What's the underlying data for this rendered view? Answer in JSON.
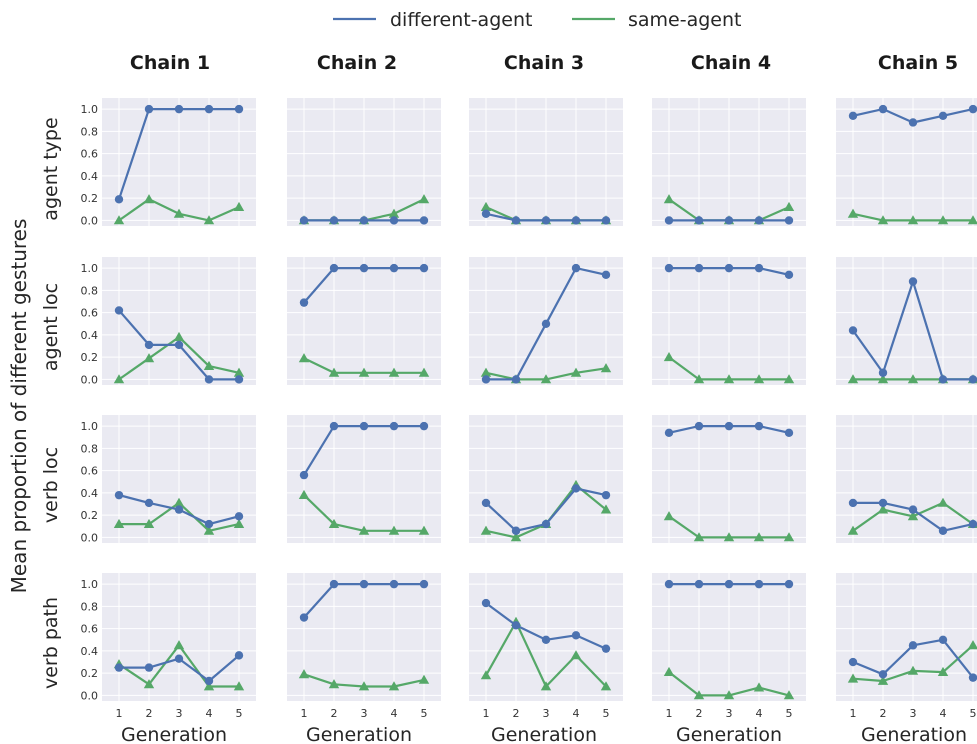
{
  "chart_data": {
    "type": "line",
    "ylabel": "Mean proportion of different gestures",
    "xlabel": "Generation",
    "x": [
      1,
      2,
      3,
      4,
      5
    ],
    "ylim": [
      -0.05,
      1.1
    ],
    "yticks": [
      "0.0",
      "0.2",
      "0.4",
      "0.6",
      "0.8",
      "1.0"
    ],
    "xticks": [
      "1",
      "2",
      "3",
      "4",
      "5"
    ],
    "grid": true,
    "legend": {
      "placement": "top-center",
      "entries": [
        {
          "name": "different-agent",
          "color": "#4c72b0",
          "marker": "circle"
        },
        {
          "name": "same-agent",
          "color": "#55a868",
          "marker": "triangle"
        }
      ]
    },
    "columns": [
      "Chain 1",
      "Chain 2",
      "Chain 3",
      "Chain 4",
      "Chain 5"
    ],
    "rows": [
      "agent type",
      "agent loc",
      "verb loc",
      "verb path"
    ],
    "panels": [
      [
        {
          "different-agent": [
            0.19,
            1.0,
            1.0,
            1.0,
            1.0
          ],
          "same-agent": [
            0.0,
            0.19,
            0.06,
            0.0,
            0.12
          ]
        },
        {
          "different-agent": [
            0.0,
            0.0,
            0.0,
            0.0,
            0.0
          ],
          "same-agent": [
            0.0,
            0.0,
            0.0,
            0.06,
            0.19
          ]
        },
        {
          "different-agent": [
            0.06,
            0.0,
            0.0,
            0.0,
            0.0
          ],
          "same-agent": [
            0.12,
            0.0,
            0.0,
            0.0,
            0.0
          ]
        },
        {
          "different-agent": [
            0.0,
            0.0,
            0.0,
            0.0,
            0.0
          ],
          "same-agent": [
            0.19,
            0.0,
            0.0,
            0.0,
            0.12
          ]
        },
        {
          "different-agent": [
            0.94,
            1.0,
            0.88,
            0.94,
            1.0
          ],
          "same-agent": [
            0.06,
            0.0,
            0.0,
            0.0,
            0.0
          ]
        }
      ],
      [
        {
          "different-agent": [
            0.62,
            0.31,
            0.31,
            0.0,
            0.0
          ],
          "same-agent": [
            0.0,
            0.19,
            0.38,
            0.12,
            0.06
          ]
        },
        {
          "different-agent": [
            0.69,
            1.0,
            1.0,
            1.0,
            1.0
          ],
          "same-agent": [
            0.19,
            0.06,
            0.06,
            0.06,
            0.06
          ]
        },
        {
          "different-agent": [
            0.0,
            0.0,
            0.5,
            1.0,
            0.94
          ],
          "same-agent": [
            0.06,
            0.0,
            0.0,
            0.06,
            0.1
          ]
        },
        {
          "different-agent": [
            1.0,
            1.0,
            1.0,
            1.0,
            0.94
          ],
          "same-agent": [
            0.2,
            0.0,
            0.0,
            0.0,
            0.0
          ]
        },
        {
          "different-agent": [
            0.44,
            0.06,
            0.88,
            0.0,
            0.0
          ],
          "same-agent": [
            0.0,
            0.0,
            0.0,
            0.0,
            0.0
          ]
        }
      ],
      [
        {
          "different-agent": [
            0.38,
            0.31,
            0.25,
            0.12,
            0.19
          ],
          "same-agent": [
            0.12,
            0.12,
            0.31,
            0.06,
            0.12
          ]
        },
        {
          "different-agent": [
            0.56,
            1.0,
            1.0,
            1.0,
            1.0
          ],
          "same-agent": [
            0.38,
            0.12,
            0.06,
            0.06,
            0.06
          ]
        },
        {
          "different-agent": [
            0.31,
            0.06,
            0.12,
            0.44,
            0.38
          ],
          "same-agent": [
            0.06,
            0.0,
            0.12,
            0.47,
            0.25
          ]
        },
        {
          "different-agent": [
            0.94,
            1.0,
            1.0,
            1.0,
            0.94
          ],
          "same-agent": [
            0.19,
            0.0,
            0.0,
            0.0,
            0.0
          ]
        },
        {
          "different-agent": [
            0.31,
            0.31,
            0.25,
            0.06,
            0.12
          ],
          "same-agent": [
            0.06,
            0.25,
            0.19,
            0.31,
            0.12
          ]
        }
      ],
      [
        {
          "different-agent": [
            0.25,
            0.25,
            0.33,
            0.13,
            0.36
          ],
          "same-agent": [
            0.28,
            0.1,
            0.45,
            0.08,
            0.08
          ]
        },
        {
          "different-agent": [
            0.7,
            1.0,
            1.0,
            1.0,
            1.0
          ],
          "same-agent": [
            0.19,
            0.1,
            0.08,
            0.08,
            0.14
          ]
        },
        {
          "different-agent": [
            0.83,
            0.63,
            0.5,
            0.54,
            0.42
          ],
          "same-agent": [
            0.18,
            0.66,
            0.08,
            0.36,
            0.08
          ]
        },
        {
          "different-agent": [
            1.0,
            1.0,
            1.0,
            1.0,
            1.0
          ],
          "same-agent": [
            0.21,
            0.0,
            0.0,
            0.07,
            0.0
          ]
        },
        {
          "different-agent": [
            0.3,
            0.19,
            0.45,
            0.5,
            0.16
          ],
          "same-agent": [
            0.15,
            0.13,
            0.22,
            0.21,
            0.45
          ]
        }
      ]
    ]
  }
}
